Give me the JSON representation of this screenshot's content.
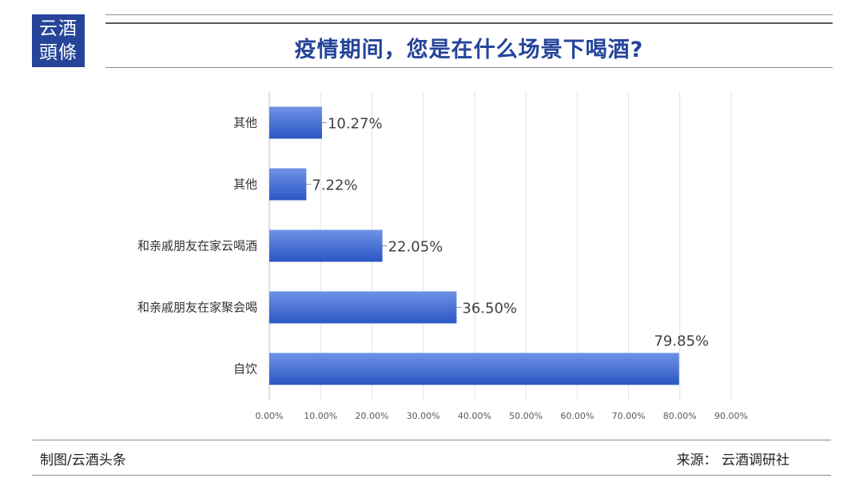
{
  "logo": {
    "line1": "云酒",
    "line2": "頭條"
  },
  "title": "疫情期间，您是在什么场景下喝酒?",
  "footer": {
    "left": "制图/云酒头条",
    "right": "来源：  云酒调研社"
  },
  "colors": {
    "brand": "#25449a",
    "bar_top": "#6f93e6",
    "bar_bottom": "#2b56c4"
  },
  "chart_data": {
    "type": "bar",
    "orientation": "horizontal",
    "title": "疫情期间，您是在什么场景下喝酒?",
    "categories": [
      "其他",
      "其他",
      "和亲戚朋友在家云喝酒",
      "和亲戚朋友在家聚会喝",
      "自饮"
    ],
    "values": [
      10.27,
      7.22,
      22.05,
      36.5,
      79.85
    ],
    "value_labels": [
      "10.27%",
      "7.22%",
      "22.05%",
      "36.50%",
      "79.85%"
    ],
    "xlim": [
      0,
      90
    ],
    "x_ticks": [
      0,
      10,
      20,
      30,
      40,
      50,
      60,
      70,
      80,
      90
    ],
    "x_tick_labels": [
      "0.00%",
      "10.00%",
      "20.00%",
      "30.00%",
      "40.00%",
      "50.00%",
      "60.00%",
      "70.00%",
      "80.00%",
      "90.00%"
    ],
    "grid": true,
    "legend": "none"
  }
}
